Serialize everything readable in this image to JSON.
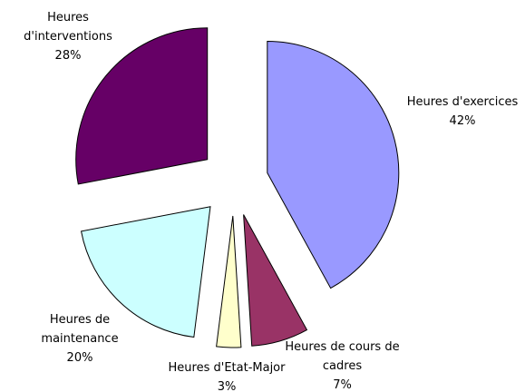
{
  "chart_data": {
    "type": "pie",
    "categories": [
      "Heures d'exercices",
      "Heures de cours de cadres",
      "Heures d'Etat-Major",
      "Heures de maintenance",
      "Heures d'interventions"
    ],
    "values": [
      42,
      7,
      3,
      20,
      28
    ],
    "value_labels": [
      "42%",
      "7%",
      "3%",
      "20%",
      "28%"
    ],
    "colors": [
      "#9999ff",
      "#993366",
      "#ffffcc",
      "#ccffff",
      "#660066"
    ]
  }
}
